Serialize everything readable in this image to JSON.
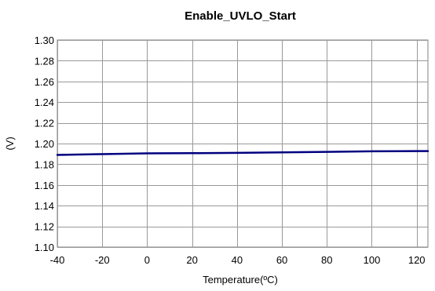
{
  "chart_data": {
    "type": "line",
    "title": "Enable_UVLO_Start",
    "xlabel": "Temperature(ºC)",
    "ylabel": "(V)",
    "xlim": [
      -40,
      125
    ],
    "ylim": [
      1.1,
      1.3
    ],
    "x_ticks": [
      -40,
      -20,
      0,
      20,
      40,
      60,
      80,
      100,
      120
    ],
    "x_tick_labels": [
      "-40",
      "-20",
      "0",
      "20",
      "40",
      "60",
      "80",
      "100",
      "120"
    ],
    "y_ticks": [
      1.1,
      1.12,
      1.14,
      1.16,
      1.18,
      1.2,
      1.22,
      1.24,
      1.26,
      1.28,
      1.3
    ],
    "y_tick_labels": [
      "1.10",
      "1.12",
      "1.14",
      "1.16",
      "1.18",
      "1.20",
      "1.22",
      "1.24",
      "1.26",
      "1.28",
      "1.30"
    ],
    "grid": true,
    "legend": "none",
    "series": [
      {
        "color": "#00007f",
        "x": [
          -40,
          -20,
          0,
          20,
          40,
          60,
          80,
          100,
          120,
          125
        ],
        "y": [
          1.189,
          1.1898,
          1.1905,
          1.1907,
          1.191,
          1.1915,
          1.192,
          1.1925,
          1.1927,
          1.1927
        ]
      }
    ]
  }
}
